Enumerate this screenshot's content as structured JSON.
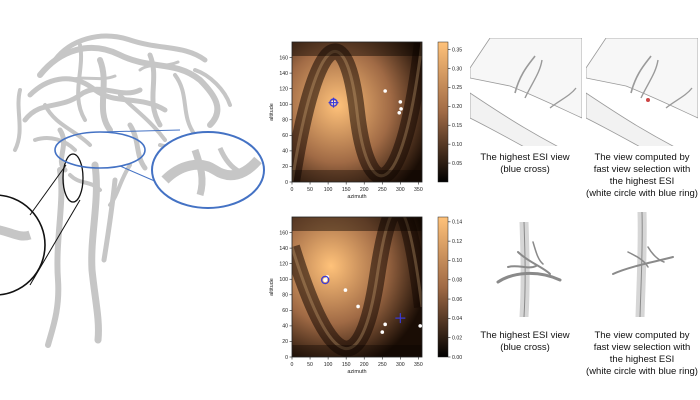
{
  "vessel_figure": {
    "shading_color": "#bdbdbd",
    "zoom_ring_blue": "#4472c4",
    "zoom_ring_black": "#111111"
  },
  "plots": [
    {
      "id": "top",
      "xlabel": "azimuth",
      "ylabel": "altitude",
      "x_ticks": [
        "0",
        "50",
        "100",
        "150",
        "200",
        "250",
        "300",
        "350"
      ],
      "y_ticks": [
        "0",
        "20",
        "40",
        "60",
        "80",
        "100",
        "120",
        "140",
        "160"
      ],
      "xlim": [
        0,
        360
      ],
      "ylim": [
        0,
        180
      ],
      "colorbar_ticks": [
        "0.35",
        "0.30",
        "0.25",
        "0.20",
        "0.15",
        "0.10",
        "0.05"
      ],
      "colorbar_range": [
        0.0,
        0.37
      ],
      "blue_cross": {
        "azimuth": 115,
        "altitude": 102
      },
      "white_circle_blue_ring": {
        "azimuth": 115,
        "altitude": 102
      },
      "white_points": [
        {
          "azimuth": 258,
          "altitude": 117
        },
        {
          "azimuth": 300,
          "altitude": 103
        },
        {
          "azimuth": 302,
          "altitude": 94
        },
        {
          "azimuth": 297,
          "altitude": 89
        }
      ]
    },
    {
      "id": "bottom",
      "xlabel": "azimuth",
      "ylabel": "altitude",
      "x_ticks": [
        "0",
        "50",
        "100",
        "150",
        "200",
        "250",
        "300",
        "350"
      ],
      "y_ticks": [
        "0",
        "20",
        "40",
        "60",
        "80",
        "100",
        "120",
        "140",
        "160"
      ],
      "xlim": [
        0,
        360
      ],
      "ylim": [
        0,
        180
      ],
      "colorbar_ticks": [
        "0.14",
        "0.12",
        "0.10",
        "0.08",
        "0.06",
        "0.04",
        "0.02",
        "0.00"
      ],
      "colorbar_range": [
        0.0,
        0.145
      ],
      "blue_cross": {
        "azimuth": 300,
        "altitude": 50
      },
      "white_circle_blue_ring": {
        "azimuth": 92,
        "altitude": 99
      },
      "white_points": [
        {
          "azimuth": 98,
          "altitude": 103
        },
        {
          "azimuth": 148,
          "altitude": 86
        },
        {
          "azimuth": 183,
          "altitude": 65
        },
        {
          "azimuth": 258,
          "altitude": 42
        },
        {
          "azimuth": 250,
          "altitude": 32
        },
        {
          "azimuth": 355,
          "altitude": 40
        }
      ]
    }
  ],
  "colors": {
    "colormap_dark": "#1a0d05",
    "colormap_mid": "#a06a45",
    "colormap_light": "#ffc27a",
    "cross": "#3a3ad8",
    "ring": "#3a3ad8"
  },
  "captions": {
    "top_left": [
      "The highest ESI view",
      "(blue cross)"
    ],
    "top_right": [
      "The view computed by",
      "fast view selection with",
      "the highest ESI",
      "(white circle with blue ring)"
    ],
    "bottom_left": [
      "The highest ESI view",
      "(blue cross)"
    ],
    "bottom_right": [
      "The view computed by",
      "fast view selection with",
      "the highest ESI",
      "(white circle with blue ring)"
    ]
  }
}
